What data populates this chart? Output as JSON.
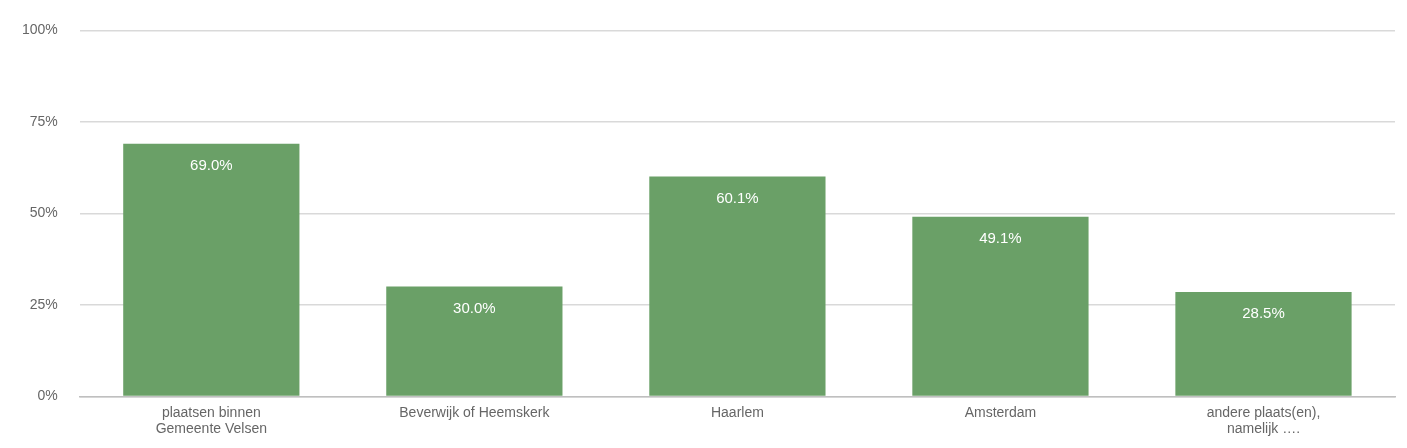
{
  "chart_data": {
    "type": "bar",
    "categories": [
      "plaatsen binnen Gemeente Velsen",
      "Beverwijk of Heemskerk",
      "Haarlem",
      "Amsterdam",
      "andere plaats(en), namelijk …."
    ],
    "values": [
      69.0,
      30.0,
      60.1,
      49.1,
      28.5
    ],
    "value_labels": [
      "69.0%",
      "30.0%",
      "60.1%",
      "49.1%",
      "28.5%"
    ],
    "color": "#6aa067",
    "ylim": [
      0,
      100
    ],
    "yticks": [
      {
        "value": 0,
        "label": "0%"
      },
      {
        "value": 25,
        "label": "25%"
      },
      {
        "value": 50,
        "label": "50%"
      },
      {
        "value": 75,
        "label": "75%"
      },
      {
        "value": 100,
        "label": "100%"
      }
    ],
    "grid": "y",
    "legend": false
  }
}
